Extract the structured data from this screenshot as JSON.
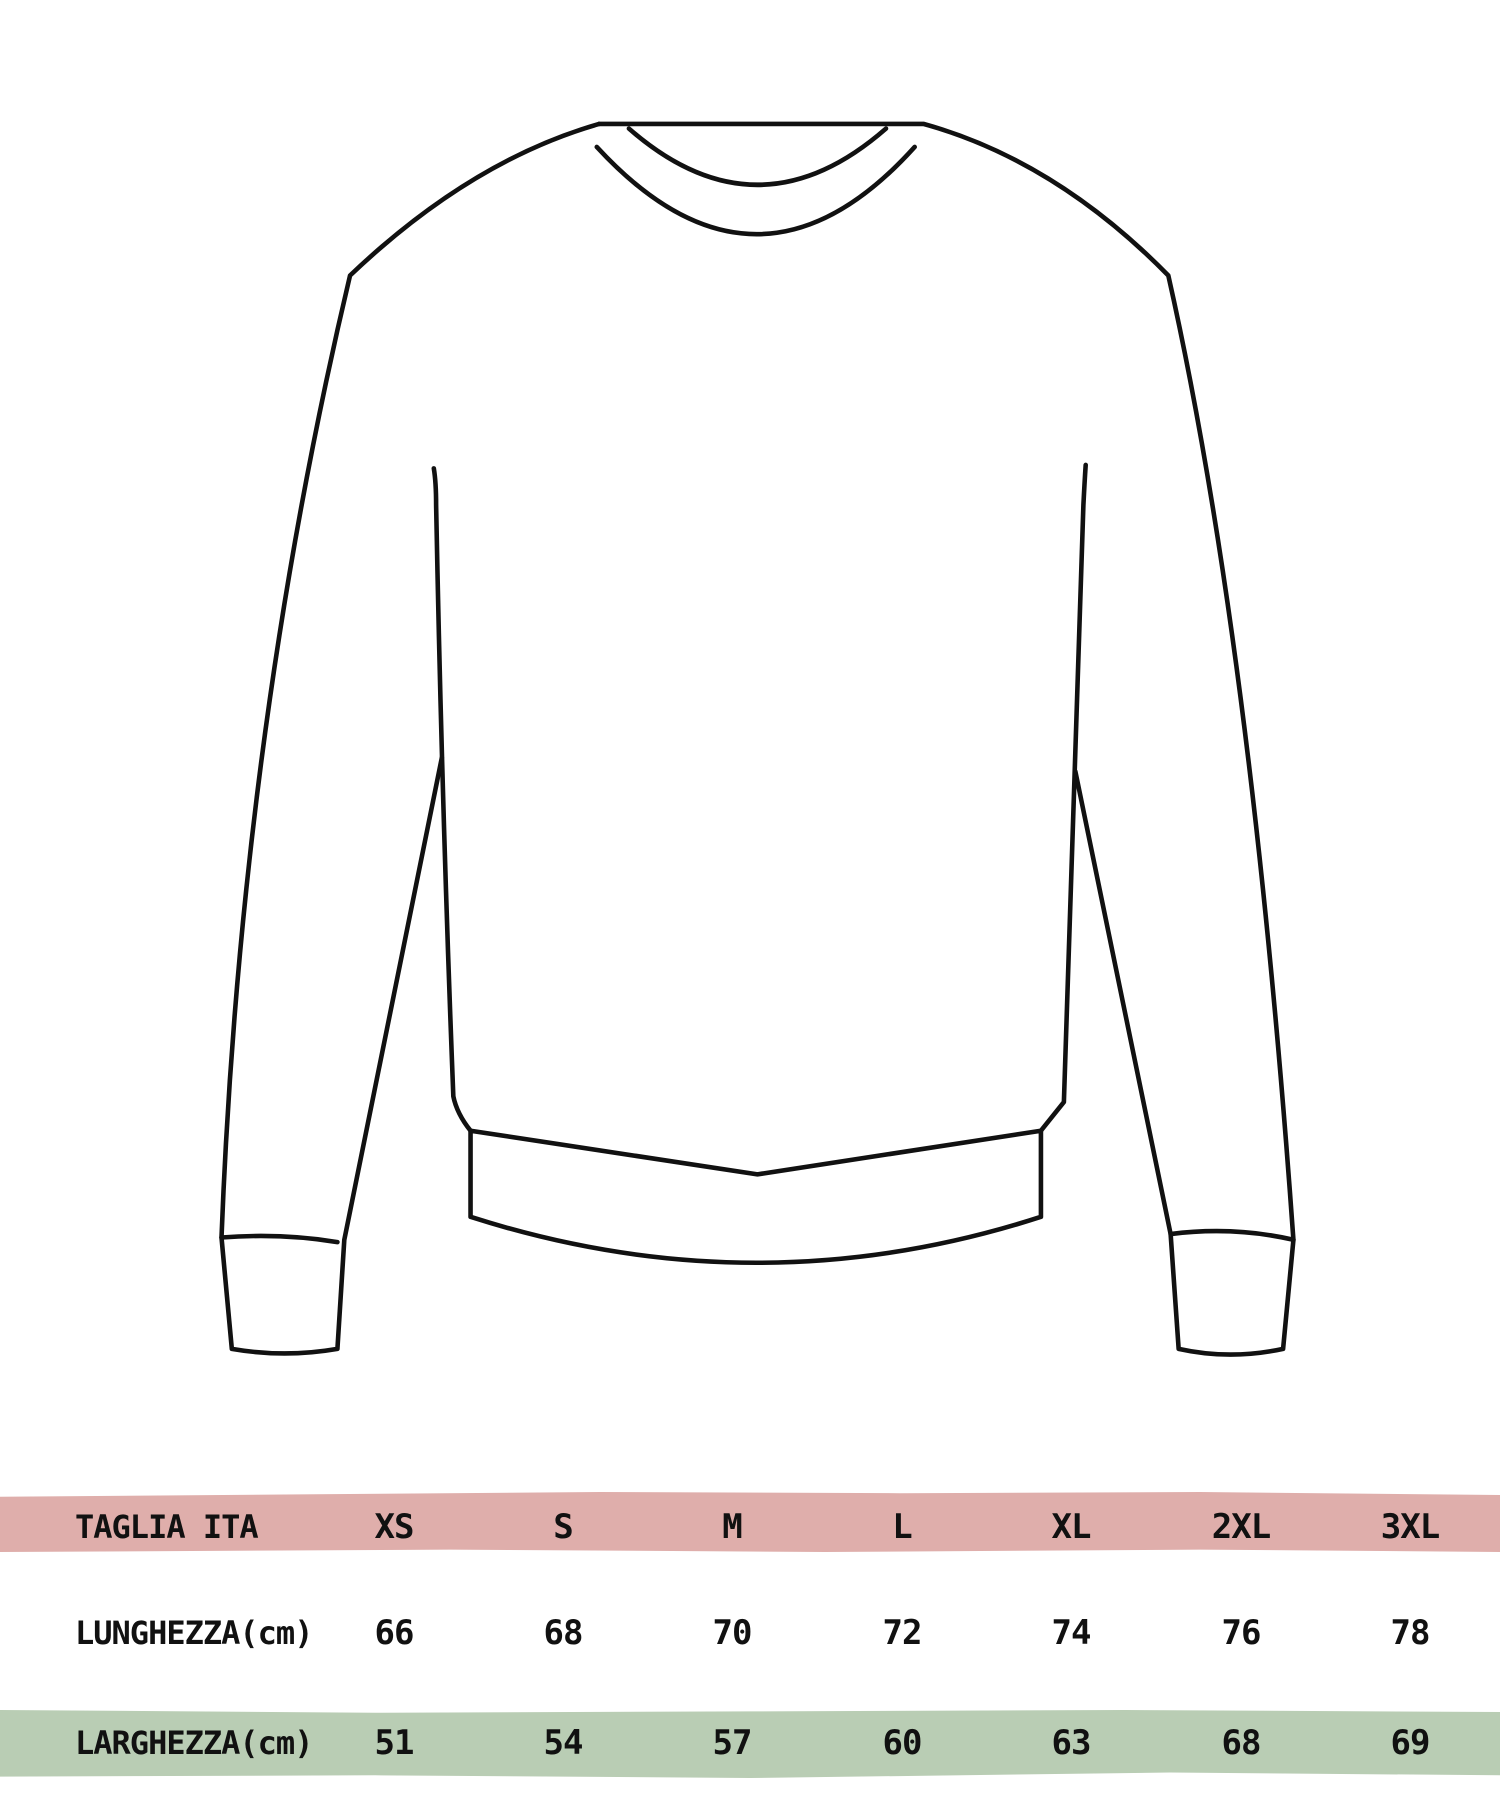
{
  "colors": {
    "header_band": "#dfaeab",
    "width_band": "#b9cdb4",
    "outline": "#111111"
  },
  "illustration": "sweatshirt-outline",
  "size_table": {
    "header": {
      "label": "TAGLIA ITA",
      "sizes": [
        "XS",
        "S",
        "M",
        "L",
        "XL",
        "2XL",
        "3XL"
      ]
    },
    "rows": [
      {
        "label": "LUNGHEZZA(cm)",
        "values": [
          "66",
          "68",
          "70",
          "72",
          "74",
          "76",
          "78"
        ]
      },
      {
        "label": "LARGHEZZA(cm)",
        "values": [
          "51",
          "54",
          "57",
          "60",
          "63",
          "68",
          "69"
        ]
      }
    ]
  }
}
